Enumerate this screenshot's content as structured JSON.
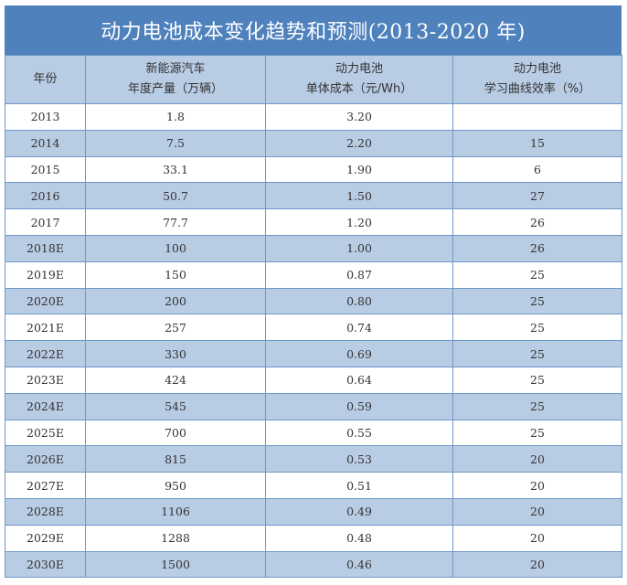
{
  "title": "动力电池成本变化趋势和预测(2013-2020 年)",
  "headers": [
    {
      "line1": "年份",
      "line2": ""
    },
    {
      "line1": "新能源汽车",
      "line2": "年度产量（万辆）"
    },
    {
      "line1": "动力电池",
      "line2": "单体成本（元/Wh）"
    },
    {
      "line1": "动力电池",
      "line2": "学习曲线效率（%）"
    }
  ],
  "rows": [
    {
      "year": "2013",
      "production": "1.8",
      "cost": "3.20",
      "efficiency": ""
    },
    {
      "year": "2014",
      "production": "7.5",
      "cost": "2.20",
      "efficiency": "15"
    },
    {
      "year": "2015",
      "production": "33.1",
      "cost": "1.90",
      "efficiency": "6"
    },
    {
      "year": "2016",
      "production": "50.7",
      "cost": "1.50",
      "efficiency": "27"
    },
    {
      "year": "2017",
      "production": "77.7",
      "cost": "1.20",
      "efficiency": "26"
    },
    {
      "year": "2018E",
      "production": "100",
      "cost": "1.00",
      "efficiency": "26"
    },
    {
      "year": "2019E",
      "production": "150",
      "cost": "0.87",
      "efficiency": "25"
    },
    {
      "year": "2020E",
      "production": "200",
      "cost": "0.80",
      "efficiency": "25"
    },
    {
      "year": "2021E",
      "production": "257",
      "cost": "0.74",
      "efficiency": "25"
    },
    {
      "year": "2022E",
      "production": "330",
      "cost": "0.69",
      "efficiency": "25"
    },
    {
      "year": "2023E",
      "production": "424",
      "cost": "0.64",
      "efficiency": "25"
    },
    {
      "year": "2024E",
      "production": "545",
      "cost": "0.59",
      "efficiency": "25"
    },
    {
      "year": "2025E",
      "production": "700",
      "cost": "0.55",
      "efficiency": "25"
    },
    {
      "year": "2026E",
      "production": "815",
      "cost": "0.53",
      "efficiency": "20"
    },
    {
      "year": "2027E",
      "production": "950",
      "cost": "0.51",
      "efficiency": "20"
    },
    {
      "year": "2028E",
      "production": "1106",
      "cost": "0.49",
      "efficiency": "20"
    },
    {
      "year": "2029E",
      "production": "1288",
      "cost": "0.48",
      "efficiency": "20"
    },
    {
      "year": "2030E",
      "production": "1500",
      "cost": "0.46",
      "efficiency": "20"
    }
  ],
  "colors": {
    "title_bg": "#4f81bd",
    "header_bg": "#b8cce4",
    "stripe_bg": "#b8cce4",
    "border": "#6f97c9"
  }
}
